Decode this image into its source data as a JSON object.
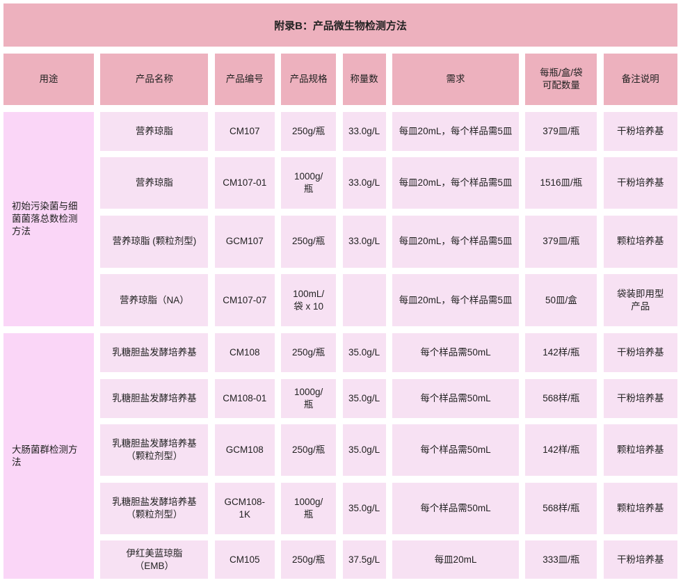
{
  "title": "附录B：产品微生物检测方法",
  "headers": [
    "用途",
    "产品名称",
    "产品编号",
    "产品规格",
    "称量数",
    "需求",
    "每瓶/盒/袋可配数量",
    "备注说明"
  ],
  "groups": [
    {
      "label": "初始污染菌与细菌菌落总数检测方法",
      "rows": [
        [
          "营养琼脂",
          "CM107",
          "250g/瓶",
          "33.0g/L",
          "每皿20mL，每个样品需5皿",
          "379皿/瓶",
          "干粉培养基"
        ],
        [
          "营养琼脂",
          "CM107-01",
          "1000g/瓶",
          "33.0g/L",
          "每皿20mL，每个样品需5皿",
          "1516皿/瓶",
          "干粉培养基"
        ],
        [
          "营养琼脂 (颗粒剂型)",
          "GCM107",
          "250g/瓶",
          "33.0g/L",
          "每皿20mL，每个样品需5皿",
          "379皿/瓶",
          "颗粒培养基"
        ],
        [
          "营养琼脂（NA）",
          "CM107-07",
          "100mL/袋 x 10",
          "",
          "每皿20mL，每个样品需5皿",
          "50皿/盒",
          "袋装即用型产品"
        ]
      ]
    },
    {
      "label": "大肠菌群检测方法",
      "rows": [
        [
          "乳糖胆盐发酵培养基",
          "CM108",
          "250g/瓶",
          "35.0g/L",
          "每个样品需50mL",
          "142样/瓶",
          "干粉培养基"
        ],
        [
          "乳糖胆盐发酵培养基",
          "CM108-01",
          "1000g/瓶",
          "35.0g/L",
          "每个样品需50mL",
          "568样/瓶",
          "干粉培养基"
        ],
        [
          "乳糖胆盐发酵培养基（颗粒剂型）",
          "GCM108",
          "250g/瓶",
          "35.0g/L",
          "每个样品需50mL",
          "142样/瓶",
          "颗粒培养基"
        ],
        [
          "乳糖胆盐发酵培养基（颗粒剂型）",
          "GCM108-1K",
          "1000g/瓶",
          "35.0g/L",
          "每个样品需50mL",
          "568样/瓶",
          "颗粒培养基"
        ],
        [
          "伊红美蓝琼脂（EMB）",
          "CM105",
          "250g/瓶",
          "37.5g/L",
          "每皿20mL",
          "333皿/瓶",
          "干粉培养基"
        ]
      ]
    }
  ],
  "colors": {
    "header": "#edb1be",
    "cell": "#f7e1f3",
    "group": "#fad6f7"
  }
}
